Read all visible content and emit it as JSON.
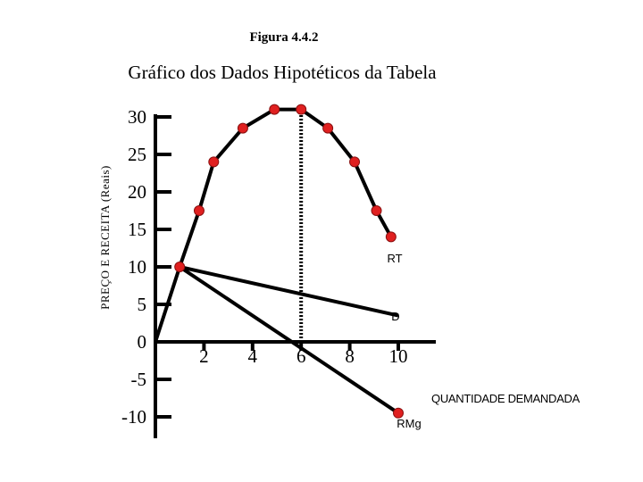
{
  "figure_label": "Figura 4.4.2",
  "colors": {
    "axis": "#000000",
    "marker": "#e02020",
    "line": "#000000"
  },
  "chart_data": {
    "type": "line",
    "title": "Gráfico dos Dados Hipotéticos da Tabela",
    "ylabel": "PREÇO E RECEITA (Reais)",
    "xlabel": "QUANTIDADE DEMANDADA",
    "xlim": [
      0,
      11.5
    ],
    "ylim": [
      -12,
      32
    ],
    "x_ticks": [
      2,
      4,
      6,
      8,
      10
    ],
    "y_ticks": [
      -10,
      -5,
      0,
      5,
      10,
      15,
      20,
      25,
      30
    ],
    "grid": false,
    "series": [
      {
        "name": "RT",
        "x": [
          0,
          1,
          1.8,
          2.4,
          3.6,
          4.9,
          6,
          7.1,
          8.2,
          9.1,
          9.7
        ],
        "y": [
          0,
          10,
          17.5,
          24,
          28.5,
          31,
          31,
          28.5,
          24,
          17.5,
          14
        ],
        "markers_from_index": 1
      },
      {
        "name": "D",
        "x": [
          1,
          10
        ],
        "y": [
          10,
          3.5
        ],
        "markers_from_index": 99
      },
      {
        "name": "RMg",
        "x": [
          1,
          10
        ],
        "y": [
          10,
          -9.5
        ],
        "markers_from_index": 1
      }
    ],
    "annotations": [
      {
        "type": "vline",
        "x": 6,
        "y_from": 0,
        "y_to": 31,
        "style": "dotted"
      }
    ]
  }
}
